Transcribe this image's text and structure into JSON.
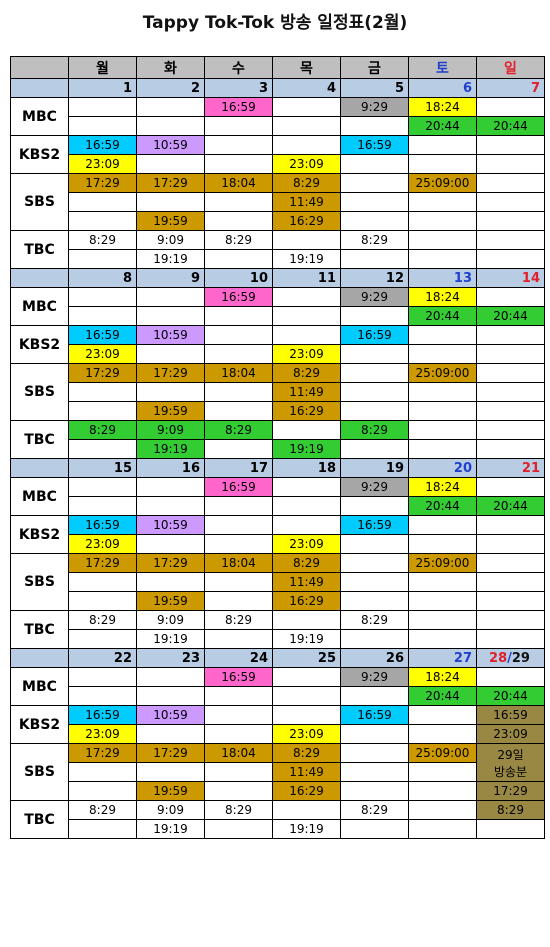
{
  "title": "Tappy Tok-Tok 방송 일정표(2월)",
  "weekdays": [
    "",
    "월",
    "화",
    "수",
    "목",
    "금",
    "토",
    "일"
  ],
  "weeks": [
    {
      "dates": [
        "1",
        "2",
        "3",
        "4",
        "5",
        "6",
        "7"
      ],
      "tbc_colored": false,
      "sun_span": false
    },
    {
      "dates": [
        "8",
        "9",
        "10",
        "11",
        "12",
        "13",
        "14"
      ],
      "tbc_colored": true,
      "sun_span": false
    },
    {
      "dates": [
        "15",
        "16",
        "17",
        "18",
        "19",
        "20",
        "21"
      ],
      "tbc_colored": false,
      "sun_span": false
    },
    {
      "dates": [
        "22",
        "23",
        "24",
        "25",
        "26",
        "27",
        "28",
        "/",
        "29"
      ],
      "tbc_colored": false,
      "sun_span": true
    }
  ],
  "channels": {
    "mbc": "MBC",
    "kbs": "KBS2",
    "sbs": "SBS",
    "tbc": "TBC"
  },
  "times": {
    "mbc_wed": "16:59",
    "mbc_fri": "9:29",
    "mbc_sat1": "18:24",
    "mbc_sat2": "20:44",
    "mbc_sun": "20:44",
    "kbs_mon1": "16:59",
    "kbs_tue": "10:59",
    "kbs_fri": "16:59",
    "kbs_mon2": "23:09",
    "kbs_thu": "23:09",
    "sbs_mon": "17:29",
    "sbs_tue1": "17:29",
    "sbs_wed": "18:04",
    "sbs_thu1": "8:29",
    "sbs_sat": "25:09:00",
    "sbs_thu2": "11:49",
    "sbs_tue2": "19:59",
    "sbs_thu3": "16:29",
    "tbc_mon": "8:29",
    "tbc_tue1": "9:09",
    "tbc_wed": "8:29",
    "tbc_fri": "8:29",
    "tbc_tue2": "19:19",
    "tbc_thu": "19:19"
  },
  "special": [
    "16:59",
    "23:09",
    "29일",
    "방송분",
    "17:29",
    "8:29"
  ],
  "colors": {
    "pink": "#ff66cc",
    "gray": "#a6a6a6",
    "yellow": "#ffff00",
    "green": "#33cc33",
    "cyan": "#00ccff",
    "purple": "#cc99ff",
    "gold": "#cc9900",
    "olive": "#998844",
    "date_row": "#b8cce4",
    "header_row": "#bfbfbf"
  }
}
